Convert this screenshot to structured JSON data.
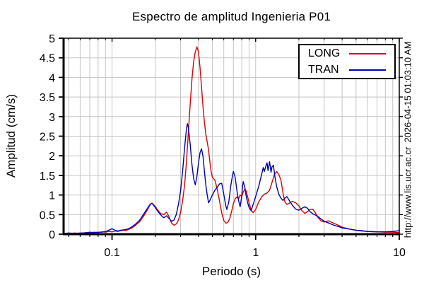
{
  "annotations": {
    "timestamp": "2026-04-15 01:03:10 AM",
    "url": "http://www.lis.ucr.ac.cr"
  },
  "legend": {
    "items": [
      {
        "label": "LONG",
        "color": "#dd0000"
      },
      {
        "label": "TRAN",
        "color": "#0000bb"
      }
    ]
  },
  "colors": {
    "grid": "#c5c5c5",
    "frame": "#000000",
    "background": "#ffffff"
  },
  "chart_data": {
    "type": "line",
    "title": "Espectro de amplitud Ingenieria P01",
    "xlabel": "Periodo (s)",
    "ylabel": "Amplitud (cm/s)",
    "xscale": "log",
    "xlim": [
      0.046,
      10
    ],
    "ylim": [
      0,
      5
    ],
    "grid": true,
    "legend_position": "top-right",
    "x_major_ticks": [
      0.1,
      1,
      10
    ],
    "x_major_tick_labels": [
      "0.1",
      "1",
      "10"
    ],
    "x_minor_ticks": [
      0.05,
      0.06,
      0.07,
      0.08,
      0.09,
      0.2,
      0.3,
      0.4,
      0.5,
      0.6,
      0.7,
      0.8,
      0.9,
      2,
      3,
      4,
      5,
      6,
      7,
      8,
      9
    ],
    "y_ticks": [
      0,
      0.5,
      1,
      1.5,
      2,
      2.5,
      3,
      3.5,
      4,
      4.5,
      5
    ],
    "y_tick_labels": [
      "0",
      "0.5",
      "1",
      "1.5",
      "2",
      "2.5",
      "3",
      "3.5",
      "4",
      "4.5",
      "5"
    ],
    "series": [
      {
        "name": "LONG",
        "color": "#dd0000",
        "points": [
          [
            0.046,
            0.02
          ],
          [
            0.05,
            0.02
          ],
          [
            0.055,
            0.03
          ],
          [
            0.06,
            0.02
          ],
          [
            0.065,
            0.04
          ],
          [
            0.07,
            0.03
          ],
          [
            0.075,
            0.05
          ],
          [
            0.08,
            0.04
          ],
          [
            0.085,
            0.06
          ],
          [
            0.09,
            0.05
          ],
          [
            0.095,
            0.07
          ],
          [
            0.1,
            0.06
          ],
          [
            0.105,
            0.08
          ],
          [
            0.11,
            0.07
          ],
          [
            0.115,
            0.09
          ],
          [
            0.12,
            0.1
          ],
          [
            0.125,
            0.09
          ],
          [
            0.13,
            0.12
          ],
          [
            0.135,
            0.14
          ],
          [
            0.14,
            0.18
          ],
          [
            0.145,
            0.22
          ],
          [
            0.15,
            0.27
          ],
          [
            0.155,
            0.31
          ],
          [
            0.16,
            0.38
          ],
          [
            0.165,
            0.45
          ],
          [
            0.17,
            0.52
          ],
          [
            0.175,
            0.6
          ],
          [
            0.18,
            0.68
          ],
          [
            0.185,
            0.76
          ],
          [
            0.19,
            0.79
          ],
          [
            0.195,
            0.75
          ],
          [
            0.2,
            0.71
          ],
          [
            0.205,
            0.65
          ],
          [
            0.21,
            0.6
          ],
          [
            0.215,
            0.55
          ],
          [
            0.22,
            0.52
          ],
          [
            0.23,
            0.5
          ],
          [
            0.235,
            0.54
          ],
          [
            0.24,
            0.56
          ],
          [
            0.245,
            0.5
          ],
          [
            0.25,
            0.44
          ],
          [
            0.255,
            0.35
          ],
          [
            0.26,
            0.28
          ],
          [
            0.27,
            0.23
          ],
          [
            0.28,
            0.26
          ],
          [
            0.29,
            0.36
          ],
          [
            0.3,
            0.55
          ],
          [
            0.31,
            0.85
          ],
          [
            0.32,
            1.25
          ],
          [
            0.33,
            1.85
          ],
          [
            0.34,
            2.6
          ],
          [
            0.35,
            3.3
          ],
          [
            0.36,
            3.95
          ],
          [
            0.37,
            4.4
          ],
          [
            0.38,
            4.65
          ],
          [
            0.39,
            4.78
          ],
          [
            0.4,
            4.65
          ],
          [
            0.41,
            4.25
          ],
          [
            0.42,
            3.75
          ],
          [
            0.43,
            3.25
          ],
          [
            0.44,
            2.85
          ],
          [
            0.45,
            2.55
          ],
          [
            0.46,
            2.35
          ],
          [
            0.47,
            2.15
          ],
          [
            0.48,
            1.85
          ],
          [
            0.49,
            1.6
          ],
          [
            0.5,
            1.45
          ],
          [
            0.52,
            1.38
          ],
          [
            0.54,
            1.15
          ],
          [
            0.56,
            0.85
          ],
          [
            0.58,
            0.55
          ],
          [
            0.6,
            0.35
          ],
          [
            0.62,
            0.28
          ],
          [
            0.64,
            0.3
          ],
          [
            0.66,
            0.4
          ],
          [
            0.68,
            0.58
          ],
          [
            0.7,
            0.78
          ],
          [
            0.72,
            0.9
          ],
          [
            0.74,
            0.95
          ],
          [
            0.76,
            0.9
          ],
          [
            0.78,
            1.0
          ],
          [
            0.8,
            0.96
          ],
          [
            0.82,
            1.08
          ],
          [
            0.84,
            1.15
          ],
          [
            0.86,
            1.1
          ],
          [
            0.88,
            0.95
          ],
          [
            0.9,
            0.8
          ],
          [
            0.93,
            0.62
          ],
          [
            0.96,
            0.55
          ],
          [
            1.0,
            0.63
          ],
          [
            1.05,
            0.82
          ],
          [
            1.1,
            0.95
          ],
          [
            1.15,
            1.02
          ],
          [
            1.2,
            1.05
          ],
          [
            1.25,
            1.12
          ],
          [
            1.3,
            1.32
          ],
          [
            1.35,
            1.52
          ],
          [
            1.4,
            1.6
          ],
          [
            1.45,
            1.52
          ],
          [
            1.5,
            1.38
          ],
          [
            1.55,
            1.05
          ],
          [
            1.6,
            0.82
          ],
          [
            1.65,
            0.76
          ],
          [
            1.7,
            0.78
          ],
          [
            1.8,
            0.84
          ],
          [
            1.9,
            0.8
          ],
          [
            2.0,
            0.72
          ],
          [
            2.1,
            0.6
          ],
          [
            2.2,
            0.53
          ],
          [
            2.3,
            0.58
          ],
          [
            2.4,
            0.63
          ],
          [
            2.5,
            0.64
          ],
          [
            2.6,
            0.55
          ],
          [
            2.7,
            0.44
          ],
          [
            2.85,
            0.34
          ],
          [
            3.0,
            0.31
          ],
          [
            3.2,
            0.34
          ],
          [
            3.4,
            0.3
          ],
          [
            3.6,
            0.26
          ],
          [
            3.8,
            0.22
          ],
          [
            4.0,
            0.18
          ],
          [
            4.5,
            0.13
          ],
          [
            5.0,
            0.1
          ],
          [
            5.5,
            0.08
          ],
          [
            6.0,
            0.07
          ],
          [
            7.0,
            0.06
          ],
          [
            8.0,
            0.05
          ],
          [
            9.0,
            0.05
          ],
          [
            10.0,
            0.04
          ]
        ]
      },
      {
        "name": "TRAN",
        "color": "#0000bb",
        "points": [
          [
            0.046,
            0.02
          ],
          [
            0.05,
            0.03
          ],
          [
            0.055,
            0.02
          ],
          [
            0.06,
            0.03
          ],
          [
            0.065,
            0.03
          ],
          [
            0.07,
            0.05
          ],
          [
            0.075,
            0.04
          ],
          [
            0.08,
            0.05
          ],
          [
            0.085,
            0.05
          ],
          [
            0.09,
            0.07
          ],
          [
            0.095,
            0.1
          ],
          [
            0.1,
            0.14
          ],
          [
            0.105,
            0.1
          ],
          [
            0.11,
            0.08
          ],
          [
            0.115,
            0.1
          ],
          [
            0.12,
            0.11
          ],
          [
            0.125,
            0.12
          ],
          [
            0.13,
            0.14
          ],
          [
            0.135,
            0.17
          ],
          [
            0.14,
            0.21
          ],
          [
            0.145,
            0.25
          ],
          [
            0.15,
            0.3
          ],
          [
            0.155,
            0.35
          ],
          [
            0.16,
            0.42
          ],
          [
            0.165,
            0.5
          ],
          [
            0.17,
            0.57
          ],
          [
            0.175,
            0.64
          ],
          [
            0.18,
            0.71
          ],
          [
            0.185,
            0.77
          ],
          [
            0.19,
            0.79
          ],
          [
            0.195,
            0.73
          ],
          [
            0.2,
            0.68
          ],
          [
            0.205,
            0.62
          ],
          [
            0.21,
            0.57
          ],
          [
            0.215,
            0.52
          ],
          [
            0.22,
            0.48
          ],
          [
            0.225,
            0.44
          ],
          [
            0.23,
            0.42
          ],
          [
            0.235,
            0.45
          ],
          [
            0.24,
            0.47
          ],
          [
            0.245,
            0.43
          ],
          [
            0.25,
            0.4
          ],
          [
            0.26,
            0.33
          ],
          [
            0.27,
            0.36
          ],
          [
            0.28,
            0.5
          ],
          [
            0.29,
            0.76
          ],
          [
            0.3,
            1.1
          ],
          [
            0.31,
            1.6
          ],
          [
            0.32,
            2.2
          ],
          [
            0.33,
            2.7
          ],
          [
            0.335,
            2.82
          ],
          [
            0.34,
            2.72
          ],
          [
            0.35,
            2.3
          ],
          [
            0.36,
            1.78
          ],
          [
            0.37,
            1.42
          ],
          [
            0.38,
            1.26
          ],
          [
            0.39,
            1.48
          ],
          [
            0.4,
            1.82
          ],
          [
            0.41,
            2.08
          ],
          [
            0.42,
            2.18
          ],
          [
            0.43,
            1.98
          ],
          [
            0.44,
            1.6
          ],
          [
            0.45,
            1.25
          ],
          [
            0.46,
            1.0
          ],
          [
            0.47,
            0.8
          ],
          [
            0.48,
            0.86
          ],
          [
            0.5,
            1.0
          ],
          [
            0.52,
            1.12
          ],
          [
            0.54,
            1.2
          ],
          [
            0.56,
            1.28
          ],
          [
            0.58,
            1.3
          ],
          [
            0.6,
            1.02
          ],
          [
            0.62,
            0.72
          ],
          [
            0.63,
            0.63
          ],
          [
            0.65,
            0.82
          ],
          [
            0.67,
            1.22
          ],
          [
            0.69,
            1.5
          ],
          [
            0.7,
            1.6
          ],
          [
            0.72,
            1.45
          ],
          [
            0.74,
            1.12
          ],
          [
            0.76,
            0.86
          ],
          [
            0.78,
            0.7
          ],
          [
            0.8,
            0.96
          ],
          [
            0.81,
            1.22
          ],
          [
            0.82,
            1.34
          ],
          [
            0.84,
            1.2
          ],
          [
            0.86,
            0.96
          ],
          [
            0.88,
            0.8
          ],
          [
            0.9,
            0.68
          ],
          [
            0.93,
            0.6
          ],
          [
            0.96,
            0.76
          ],
          [
            1.0,
            0.96
          ],
          [
            1.05,
            1.22
          ],
          [
            1.1,
            1.52
          ],
          [
            1.13,
            1.7
          ],
          [
            1.15,
            1.6
          ],
          [
            1.18,
            1.75
          ],
          [
            1.2,
            1.82
          ],
          [
            1.22,
            1.62
          ],
          [
            1.25,
            1.85
          ],
          [
            1.28,
            1.58
          ],
          [
            1.3,
            1.72
          ],
          [
            1.33,
            1.76
          ],
          [
            1.36,
            1.48
          ],
          [
            1.4,
            1.22
          ],
          [
            1.45,
            1.02
          ],
          [
            1.5,
            0.92
          ],
          [
            1.55,
            0.86
          ],
          [
            1.6,
            0.92
          ],
          [
            1.65,
            0.96
          ],
          [
            1.7,
            0.88
          ],
          [
            1.8,
            0.74
          ],
          [
            1.9,
            0.64
          ],
          [
            2.0,
            0.61
          ],
          [
            2.1,
            0.66
          ],
          [
            2.2,
            0.7
          ],
          [
            2.3,
            0.66
          ],
          [
            2.4,
            0.57
          ],
          [
            2.5,
            0.52
          ],
          [
            2.6,
            0.49
          ],
          [
            2.7,
            0.46
          ],
          [
            2.8,
            0.41
          ],
          [
            3.0,
            0.33
          ],
          [
            3.2,
            0.29
          ],
          [
            3.5,
            0.23
          ],
          [
            3.8,
            0.19
          ],
          [
            4.0,
            0.16
          ],
          [
            4.5,
            0.13
          ],
          [
            5.0,
            0.1
          ],
          [
            5.5,
            0.09
          ],
          [
            6.0,
            0.07
          ],
          [
            7.0,
            0.06
          ],
          [
            8.0,
            0.06
          ],
          [
            9.0,
            0.07
          ],
          [
            10.0,
            0.09
          ]
        ]
      }
    ]
  }
}
